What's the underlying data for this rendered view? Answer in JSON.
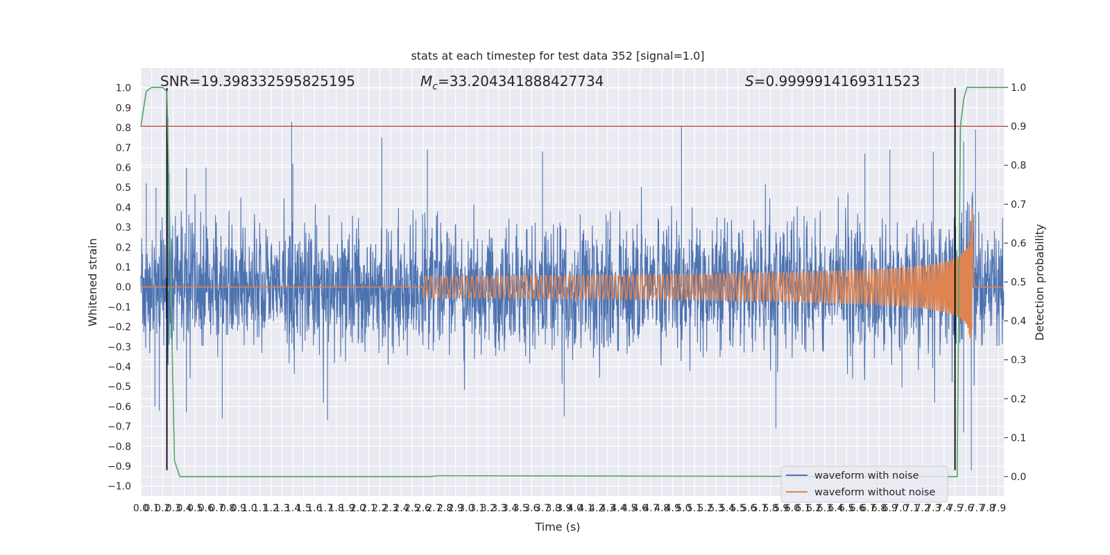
{
  "chart_data": {
    "type": "line",
    "title": "stats at each timestep for test data 352 [signal=1.0]",
    "xlabel": "Time (s)",
    "ylabel": "Whitened strain",
    "y2label": "Detection probability",
    "xlim": [
      0.0,
      7.95
    ],
    "ylim": [
      -1.05,
      1.1
    ],
    "y2lim": [
      -0.05,
      1.05
    ],
    "x_ticks": [
      0.0,
      0.1,
      0.2,
      0.3,
      0.4,
      0.5,
      0.6,
      0.7,
      0.8,
      0.9,
      1.0,
      1.1,
      1.2,
      1.3,
      1.4,
      1.5,
      1.6,
      1.7,
      1.8,
      1.9,
      2.0,
      2.1,
      2.2,
      2.3,
      2.4,
      2.5,
      2.6,
      2.7,
      2.8,
      2.9,
      3.0,
      3.1,
      3.2,
      3.3,
      3.4,
      3.5,
      3.6,
      3.7,
      3.8,
      3.9,
      4.0,
      4.1,
      4.2,
      4.3,
      4.4,
      4.5,
      4.6,
      4.7,
      4.8,
      4.9,
      5.0,
      5.1,
      5.2,
      5.3,
      5.4,
      5.5,
      5.6,
      5.7,
      5.8,
      5.9,
      6.0,
      6.1,
      6.2,
      6.3,
      6.4,
      6.5,
      6.6,
      6.7,
      6.8,
      6.9,
      7.0,
      7.1,
      7.2,
      7.3,
      7.4,
      7.5,
      7.6,
      7.7,
      7.8,
      7.9
    ],
    "y_ticks": [
      "1.0",
      "0.9",
      "0.8",
      "0.7",
      "0.6",
      "0.5",
      "0.4",
      "0.3",
      "0.2",
      "0.1",
      "0.0",
      "−0.1",
      "−0.2",
      "−0.3",
      "−0.4",
      "−0.5",
      "−0.6",
      "−0.7",
      "−0.8",
      "−0.9",
      "−1.0"
    ],
    "y_tick_values": [
      1.0,
      0.9,
      0.8,
      0.7,
      0.6,
      0.5,
      0.4,
      0.3,
      0.2,
      0.1,
      0.0,
      -0.1,
      -0.2,
      -0.3,
      -0.4,
      -0.5,
      -0.6,
      -0.7,
      -0.8,
      -0.9,
      -1.0
    ],
    "y2_ticks": [
      "1.0",
      "0.9",
      "0.8",
      "0.7",
      "0.6",
      "0.5",
      "0.4",
      "0.3",
      "0.2",
      "0.1",
      "0.0"
    ],
    "y2_tick_values": [
      1.0,
      0.9,
      0.8,
      0.7,
      0.6,
      0.5,
      0.4,
      0.3,
      0.2,
      0.1,
      0.0
    ],
    "annotations": {
      "snr": "SNR=19.398332595825195",
      "mc_symbol": "M",
      "mc_sub": "c",
      "mc_value": "=33.204341888427734",
      "s_symbol": "S",
      "s_value": "=0.9999914169311523"
    },
    "legend": {
      "placement": "lower right",
      "entries": [
        {
          "label": "waveform with noise",
          "color": "#4c72b0"
        },
        {
          "label": "waveform without noise",
          "color": "#dd8452"
        }
      ]
    },
    "noise_series": {
      "name": "waveform with noise",
      "color": "#4c72b0",
      "envelope_hint": {
        "typical_max": 0.45,
        "typical_min": -0.42
      },
      "peaks": [
        {
          "x": 0.05,
          "y": 0.52
        },
        {
          "x": 0.14,
          "y": 0.5
        },
        {
          "x": 0.25,
          "y": 0.85
        },
        {
          "x": 0.26,
          "y": 0.57
        },
        {
          "x": 0.42,
          "y": 0.6
        },
        {
          "x": 0.6,
          "y": 0.6
        },
        {
          "x": 1.39,
          "y": 0.83
        },
        {
          "x": 1.4,
          "y": 0.62
        },
        {
          "x": 2.22,
          "y": 0.75
        },
        {
          "x": 2.64,
          "y": 0.69
        },
        {
          "x": 3.7,
          "y": 0.68
        },
        {
          "x": 4.98,
          "y": 0.81
        },
        {
          "x": 6.67,
          "y": 0.67
        },
        {
          "x": 6.9,
          "y": 0.69
        },
        {
          "x": 7.3,
          "y": 0.68
        },
        {
          "x": 7.58,
          "y": 0.73
        },
        {
          "x": 7.69,
          "y": 0.79
        }
      ],
      "troughs": [
        {
          "x": 0.13,
          "y": -0.6
        },
        {
          "x": 0.17,
          "y": -0.62
        },
        {
          "x": 0.42,
          "y": -0.63
        },
        {
          "x": 0.75,
          "y": -0.66
        },
        {
          "x": 1.72,
          "y": -0.67
        },
        {
          "x": 3.9,
          "y": -0.65
        },
        {
          "x": 5.85,
          "y": -0.71
        },
        {
          "x": 7.5,
          "y": -0.72
        },
        {
          "x": 7.58,
          "y": -0.73
        },
        {
          "x": 7.65,
          "y": -0.92
        }
      ]
    },
    "clean_series": {
      "name": "waveform without noise",
      "color": "#dd8452",
      "chirp": {
        "t_start": 2.6,
        "t_merge": 7.66,
        "peak_amplitude": 0.47
      }
    },
    "probability_series": {
      "color": "#55a868",
      "x": [
        0.0,
        0.05,
        0.1,
        0.15,
        0.2,
        0.24,
        0.31,
        0.36,
        1.0,
        2.65,
        2.75,
        7.48,
        7.52,
        7.55,
        7.58,
        7.61,
        7.63,
        7.95
      ],
      "y": [
        0.9,
        0.99,
        1.0,
        1.0,
        1.0,
        0.99,
        0.04,
        0.0,
        0.0,
        0.0,
        0.002,
        0.0,
        0.0,
        0.9,
        0.97,
        1.0,
        1.0,
        1.0
      ]
    },
    "threshold_line": {
      "y2": 0.9,
      "color": "#c44e52"
    },
    "vertical_markers": [
      {
        "x": 0.24,
        "y_from": -0.92,
        "y_to": 1.0,
        "color": "#000000"
      },
      {
        "x": 7.5,
        "y_from": -0.92,
        "y_to": 1.0,
        "color": "#000000"
      }
    ],
    "grid": true,
    "secondary_grid": true
  }
}
